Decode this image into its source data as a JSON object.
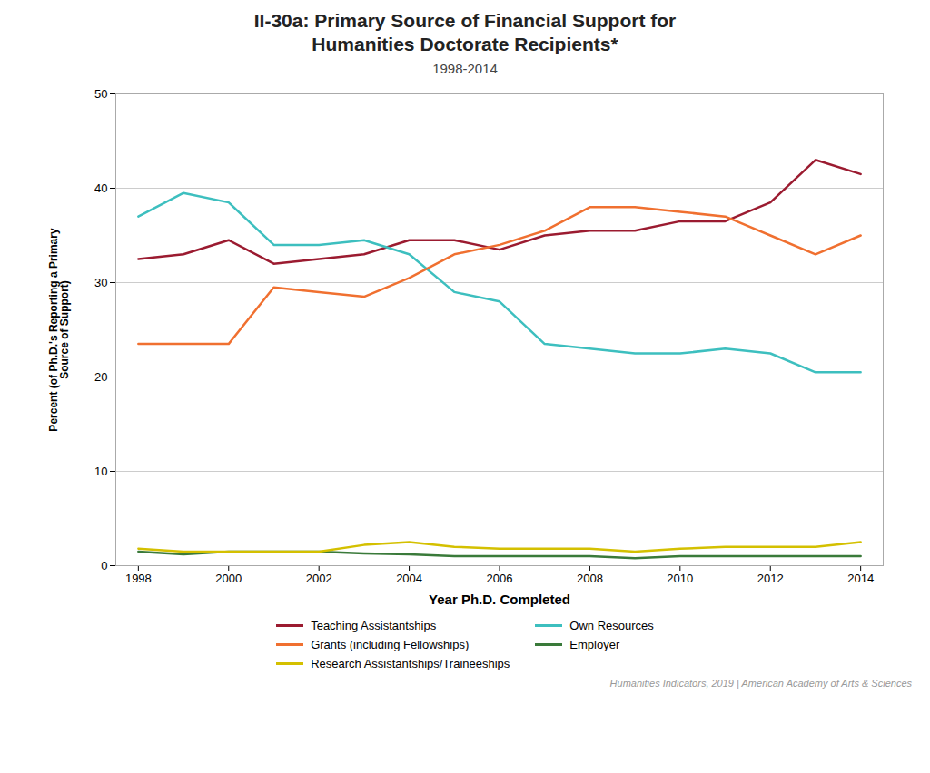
{
  "chart_data": {
    "type": "line",
    "title": "II-30a: Primary Source of Financial Support for\nHumanities Doctorate Recipients*",
    "subtitle": "1998-2014",
    "xlabel": "Year Ph.D. Completed",
    "ylabel": "Percent (of Ph.D.'s Reporting a Primary\nSource of Support)",
    "annotations": [
      "Humanities Indicators, 2019 | American Academy of Arts & Sciences"
    ],
    "x": [
      1998,
      1999,
      2000,
      2001,
      2002,
      2003,
      2004,
      2005,
      2006,
      2007,
      2008,
      2009,
      2010,
      2011,
      2012,
      2013,
      2014
    ],
    "series": [
      {
        "name": "Teaching Assistantships",
        "color": "#9B1B30",
        "values": [
          32.5,
          33.0,
          34.5,
          32.0,
          32.5,
          33.0,
          34.5,
          34.5,
          33.5,
          35.0,
          35.5,
          35.5,
          36.5,
          36.5,
          38.5,
          43.0,
          41.5
        ]
      },
      {
        "name": "Own Resources",
        "color": "#3DBFBF",
        "values": [
          37.0,
          39.5,
          38.5,
          34.0,
          34.0,
          34.5,
          33.0,
          29.0,
          28.0,
          23.5,
          23.0,
          22.5,
          22.5,
          23.0,
          22.5,
          20.5,
          20.5
        ]
      },
      {
        "name": "Grants (including Fellowships)",
        "color": "#F07030",
        "values": [
          23.5,
          23.5,
          23.5,
          29.5,
          29.0,
          28.5,
          30.5,
          33.0,
          34.0,
          35.5,
          38.0,
          38.0,
          37.5,
          37.0,
          35.0,
          33.0,
          35.0
        ]
      },
      {
        "name": "Employer",
        "color": "#3A7A3A",
        "values": [
          1.5,
          1.2,
          1.5,
          1.5,
          1.5,
          1.3,
          1.2,
          1.0,
          1.0,
          1.0,
          1.0,
          0.8,
          1.0,
          1.0,
          1.0,
          1.0,
          1.0
        ]
      },
      {
        "name": "Research Assistantships/Traineeships",
        "color": "#D4C000",
        "values": [
          1.8,
          1.5,
          1.5,
          1.5,
          1.5,
          2.2,
          2.5,
          2.0,
          1.8,
          1.8,
          1.8,
          1.5,
          1.8,
          2.0,
          2.0,
          2.0,
          2.5
        ]
      }
    ],
    "xlim": [
      1997.5,
      2014.5
    ],
    "xticks": [
      1998,
      2000,
      2002,
      2004,
      2006,
      2008,
      2010,
      2012,
      2014
    ],
    "ylim": [
      0,
      50
    ],
    "yticks": [
      0,
      10,
      20,
      30,
      40,
      50
    ],
    "grid": "y",
    "legend": "bottom"
  }
}
